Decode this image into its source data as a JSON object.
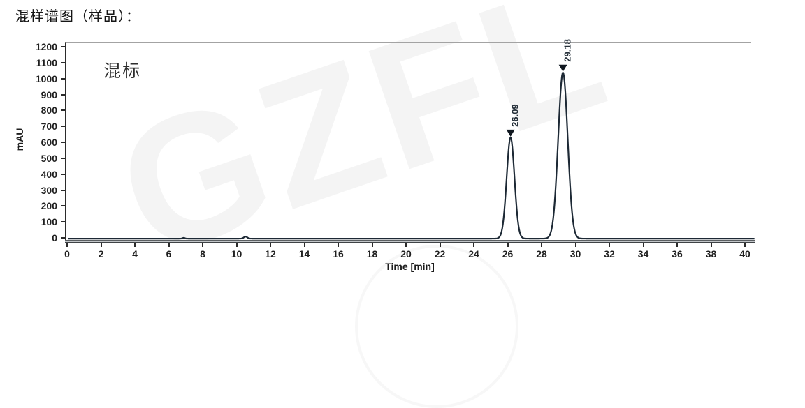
{
  "page": {
    "title": "混样谱图（样品）："
  },
  "watermark": "GZFL",
  "chart_data": {
    "type": "line",
    "title": "混样谱图（样品）：",
    "annotation": "混标",
    "xlabel": "Time [min]",
    "ylabel": "mAU",
    "xlim": [
      0,
      40.5
    ],
    "ylim": [
      0,
      1230
    ],
    "x_ticks": [
      0,
      2,
      4,
      6,
      8,
      10,
      12,
      14,
      16,
      18,
      20,
      22,
      24,
      26,
      28,
      30,
      32,
      34,
      36,
      38,
      40
    ],
    "y_ticks": [
      0,
      100,
      200,
      300,
      400,
      500,
      600,
      700,
      800,
      900,
      1000,
      1100,
      1200
    ],
    "grid": "off",
    "baseline_mau": 4,
    "peaks": [
      {
        "rt_min": 26.09,
        "apex_mau": 640,
        "sigma_min": 0.23,
        "label": "26.09"
      },
      {
        "rt_min": 29.18,
        "apex_mau": 1048,
        "sigma_min": 0.28,
        "label": "29.18"
      }
    ],
    "minor_features": [
      {
        "rt_min": 6.8,
        "apex_mau": 9,
        "sigma_min": 0.07
      },
      {
        "rt_min": 10.45,
        "apex_mau": 17,
        "sigma_min": 0.1
      }
    ],
    "colors": {
      "trace": "#1d2935",
      "axis_text": "#1f1f1f",
      "peak_label": "#26303a",
      "frame_top": "#a3a3a3",
      "watermark": "rgba(40,40,40,0.05)"
    }
  }
}
